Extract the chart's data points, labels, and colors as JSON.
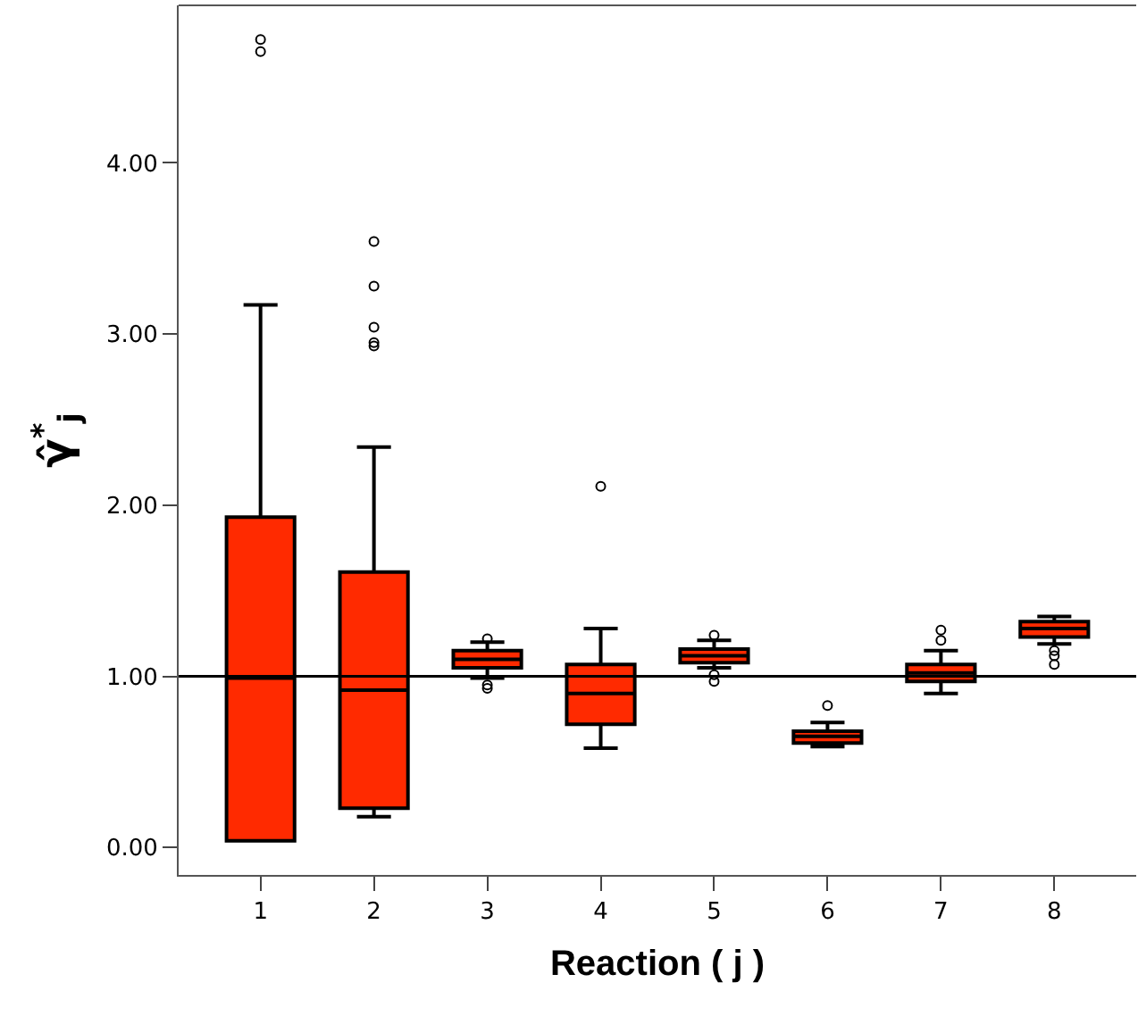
{
  "chart_data": {
    "type": "box",
    "xlabel": "Reaction ( j )",
    "ylabel": "γ̂$^{*}$$_{j}$",
    "categories": [
      "1",
      "2",
      "3",
      "4",
      "5",
      "6",
      "7",
      "8"
    ],
    "color": "#ff2a00",
    "boxes": [
      {
        "low": 0.04,
        "q1": 0.04,
        "median": 0.99,
        "q3": 1.93,
        "high": 3.17,
        "outliers": [
          4.65,
          4.72
        ]
      },
      {
        "low": 0.18,
        "q1": 0.23,
        "median": 0.92,
        "q3": 1.61,
        "high": 2.34,
        "outliers": [
          2.93,
          2.95,
          3.04,
          3.28,
          3.54
        ]
      },
      {
        "low": 0.99,
        "q1": 1.05,
        "median": 1.1,
        "q3": 1.15,
        "high": 1.2,
        "outliers": [
          0.93,
          0.95,
          1.22
        ]
      },
      {
        "low": 0.58,
        "q1": 0.72,
        "median": 0.9,
        "q3": 1.07,
        "high": 1.28,
        "outliers": [
          2.11
        ]
      },
      {
        "low": 1.05,
        "q1": 1.08,
        "median": 1.12,
        "q3": 1.16,
        "high": 1.21,
        "outliers": [
          0.97,
          1.01,
          1.24
        ]
      },
      {
        "low": 0.59,
        "q1": 0.61,
        "median": 0.65,
        "q3": 0.68,
        "high": 0.73,
        "outliers": [
          0.83
        ]
      },
      {
        "low": 0.9,
        "q1": 0.97,
        "median": 1.02,
        "q3": 1.07,
        "high": 1.15,
        "outliers": [
          1.21,
          1.27
        ]
      },
      {
        "low": 1.19,
        "q1": 1.23,
        "median": 1.28,
        "q3": 1.32,
        "high": 1.35,
        "outliers": [
          1.07,
          1.12,
          1.15
        ]
      }
    ],
    "ylim": [
      -0.16,
      4.92
    ],
    "yticks": [
      {
        "value": 0,
        "label": "0.00"
      },
      {
        "value": 1,
        "label": "1.00"
      },
      {
        "value": 2,
        "label": "2.00"
      },
      {
        "value": 3,
        "label": "3.00"
      },
      {
        "value": 4,
        "label": "4.00"
      }
    ],
    "ref_lines": [
      {
        "axis": "y",
        "value": 1,
        "color": "#000000"
      }
    ],
    "grid": false
  }
}
